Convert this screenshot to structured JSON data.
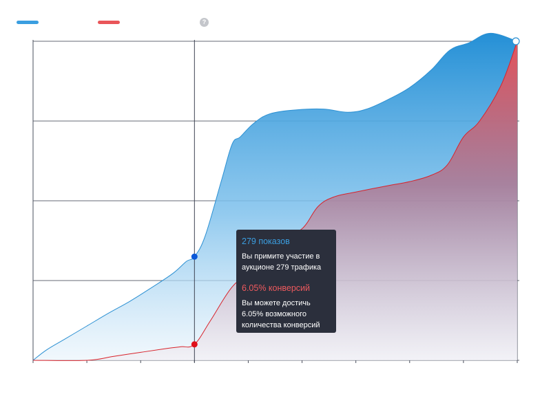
{
  "legend": [
    {
      "name": "",
      "color": "#3a9ee0"
    },
    {
      "name": "",
      "color": "#e95559"
    }
  ],
  "help_icon": {
    "glyph": "?",
    "icon": "question-circle-icon"
  },
  "colors": {
    "blue": "#2d95d8",
    "blue_line": "#2a8fd2",
    "red": "#e4545a",
    "red_line": "#d8222a",
    "grid": "#4a4f5c",
    "tooltip_bg": "#2b2f3c"
  },
  "tooltip": {
    "impressions_title": "279 показов",
    "impressions_text": "Вы примите участие в аукционе 279 трафика",
    "conversions_title": "6.05% конверсий",
    "conversions_text": "Вы можете достичь 6.05% возможного количества конверсий"
  },
  "chart_data": {
    "type": "area",
    "title": "",
    "xlabel": "",
    "ylabel": "",
    "xlim": [
      0,
      9
    ],
    "ylim": [
      0,
      4
    ],
    "grid": true,
    "legend_position": "top-left",
    "series": [
      {
        "color": "#2d95d8",
        "x": [
          0,
          0.25,
          0.6,
          1.0,
          1.4,
          1.8,
          2.2,
          2.6,
          2.85,
          3.0,
          3.2,
          3.5,
          3.7,
          3.85,
          4.1,
          4.4,
          4.9,
          5.4,
          5.85,
          6.2,
          6.6,
          7.0,
          7.4,
          7.75,
          8.1,
          8.5,
          9.0
        ],
        "y": [
          0,
          0.13,
          0.27,
          0.43,
          0.59,
          0.74,
          0.91,
          1.09,
          1.24,
          1.3,
          1.56,
          2.25,
          2.71,
          2.8,
          2.97,
          3.09,
          3.14,
          3.15,
          3.11,
          3.15,
          3.27,
          3.42,
          3.64,
          3.89,
          3.98,
          4.1,
          4.0
        ]
      },
      {
        "color": "#e4545a",
        "x": [
          0,
          1.0,
          1.5,
          2.0,
          2.5,
          2.75,
          3.0,
          3.3,
          3.7,
          4.1,
          4.6,
          5.0,
          5.3,
          5.6,
          6.0,
          6.6,
          7.0,
          7.4,
          7.7,
          8.0,
          8.3,
          8.7,
          9.0
        ],
        "y": [
          0,
          0.0,
          0.05,
          0.1,
          0.15,
          0.17,
          0.2,
          0.5,
          0.92,
          1.15,
          1.52,
          1.65,
          1.93,
          2.05,
          2.11,
          2.19,
          2.24,
          2.32,
          2.45,
          2.8,
          3.0,
          3.45,
          4.0
        ]
      }
    ],
    "hover": {
      "x": 3.0,
      "points": [
        1.3,
        0.2
      ]
    }
  }
}
